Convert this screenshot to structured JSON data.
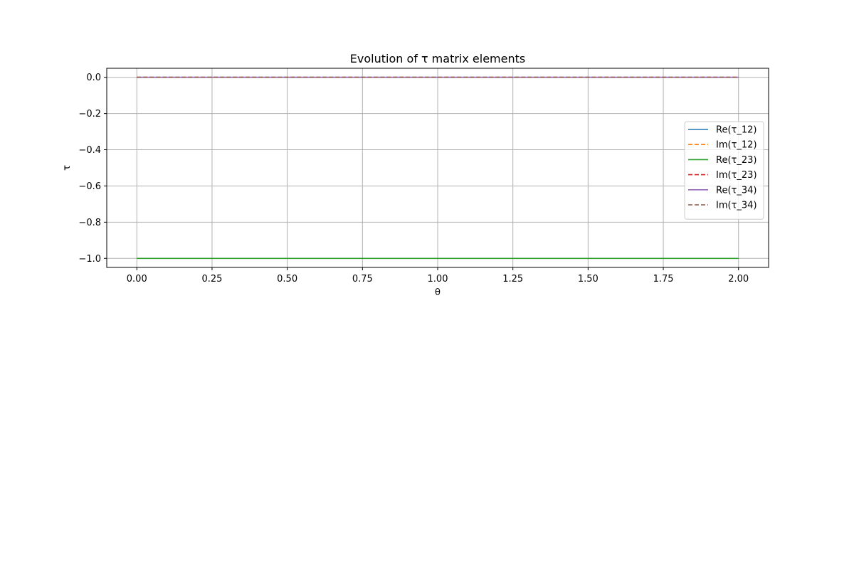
{
  "chart_data": {
    "type": "line",
    "title": "Evolution of τ matrix elements",
    "xlabel": "θ",
    "ylabel": "τ",
    "xlim": [
      -0.1,
      2.1
    ],
    "ylim": [
      -1.05,
      0.05
    ],
    "xticks": [
      0.0,
      0.25,
      0.5,
      0.75,
      1.0,
      1.25,
      1.5,
      1.75,
      2.0
    ],
    "xtick_labels": [
      "0.00",
      "0.25",
      "0.50",
      "0.75",
      "1.00",
      "1.25",
      "1.50",
      "1.75",
      "2.00"
    ],
    "yticks": [
      0.0,
      -0.2,
      -0.4,
      -0.6,
      -0.8,
      -1.0
    ],
    "ytick_labels": [
      "0.0",
      "−0.2",
      "−0.4",
      "−0.6",
      "−0.8",
      "−1.0"
    ],
    "grid": true,
    "legend_position": "center-right",
    "x": [
      0.0,
      2.0
    ],
    "series": [
      {
        "name": "Re(τ_12)",
        "values": [
          0.0,
          0.0
        ],
        "color": "#1f77b4",
        "dashed": false
      },
      {
        "name": "Im(τ_12)",
        "values": [
          0.0,
          0.0
        ],
        "color": "#ff7f0e",
        "dashed": true
      },
      {
        "name": "Re(τ_23)",
        "values": [
          -1.0,
          -1.0
        ],
        "color": "#2ca02c",
        "dashed": false
      },
      {
        "name": "Im(τ_23)",
        "values": [
          0.0,
          0.0
        ],
        "color": "#d62728",
        "dashed": true
      },
      {
        "name": "Re(τ_34)",
        "values": [
          0.0,
          0.0
        ],
        "color": "#9467bd",
        "dashed": false
      },
      {
        "name": "Im(τ_34)",
        "values": [
          0.0,
          0.0
        ],
        "color": "#8c564b",
        "dashed": true
      }
    ]
  }
}
